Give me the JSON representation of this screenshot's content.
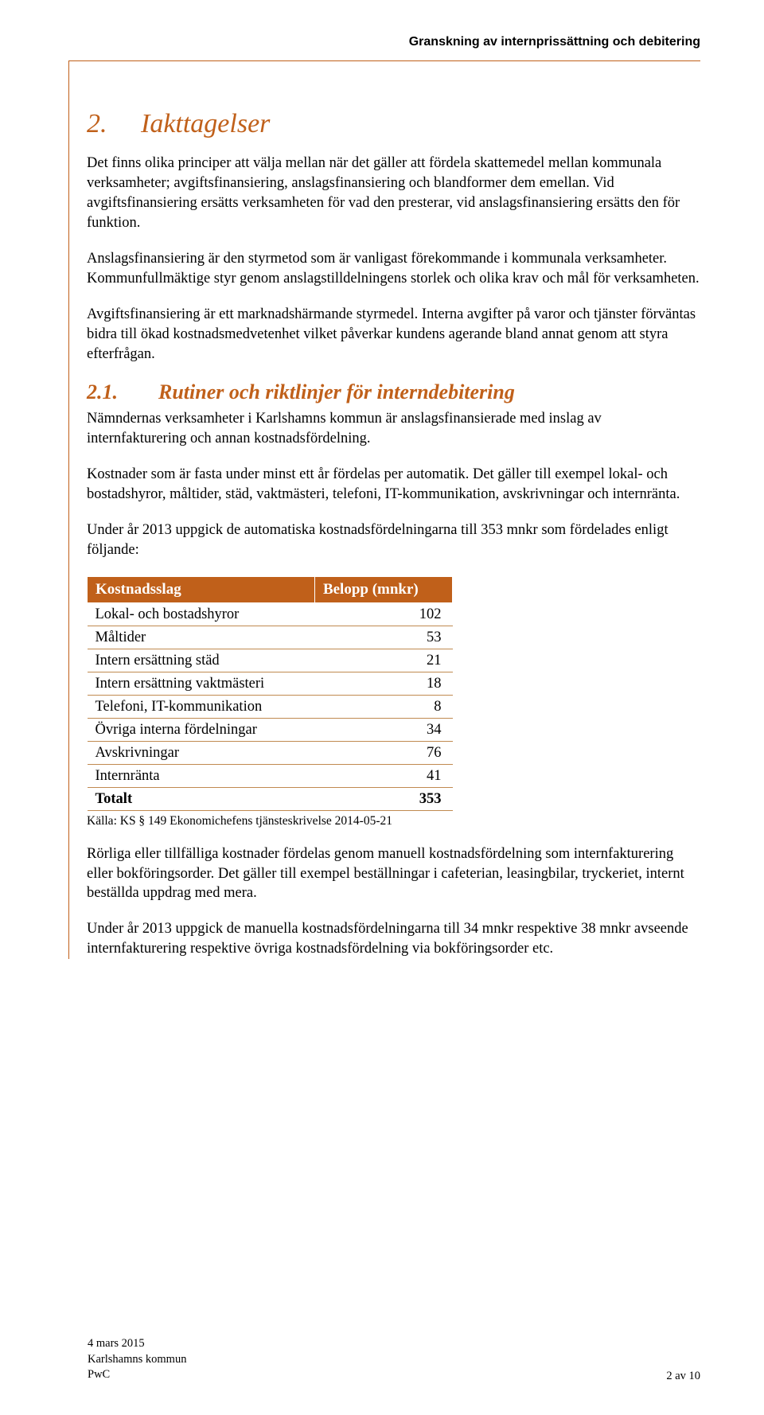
{
  "running_head": "Granskning av internprissättning och debitering",
  "section": {
    "number": "2.",
    "title": "Iakttagelser"
  },
  "paragraphs": {
    "p1": "Det finns olika principer att välja mellan när det gäller att fördela skattemedel mellan kommunala verksamheter; avgiftsfinansiering, anslagsfinansiering och blandformer dem emellan. Vid avgiftsfinansiering ersätts verksamheten för vad den presterar, vid anslagsfinansiering ersätts den för funktion.",
    "p2": "Anslagsfinansiering är den styrmetod som är vanligast förekommande i kommunala verksamheter. Kommunfullmäktige styr genom anslagstilldelningens storlek och olika krav och mål för verksamheten.",
    "p3": "Avgiftsfinansiering är ett marknadshärmande styrmedel. Interna avgifter på varor och tjänster förväntas bidra till ökad kostnadsmedvetenhet vilket påverkar kundens agerande bland annat genom att styra efterfrågan."
  },
  "subsection": {
    "number": "2.1.",
    "title": "Rutiner och riktlinjer för interndebitering"
  },
  "sub_paragraphs": {
    "sp1": "Nämndernas verksamheter i Karlshamns kommun är anslagsfinansierade med inslag av internfakturering och annan kostnadsfördelning.",
    "sp2": "Kostnader som är fasta under minst ett år fördelas per automatik. Det gäller till exempel lokal- och bostadshyror, måltider, städ, vaktmästeri, telefoni, IT-kommunikation, avskrivningar och internränta.",
    "sp3": "Under år 2013 uppgick de automatiska kostnadsfördelningarna till 353 mnkr som fördelades enligt följande:"
  },
  "table": {
    "header_col1": "Kostnadsslag",
    "header_col2": "Belopp (mnkr)",
    "rows": [
      {
        "label": "Lokal- och bostadshyror",
        "value": "102"
      },
      {
        "label": "Måltider",
        "value": "53"
      },
      {
        "label": "Intern ersättning städ",
        "value": "21"
      },
      {
        "label": "Intern ersättning vaktmästeri",
        "value": "18"
      },
      {
        "label": "Telefoni, IT-kommunikation",
        "value": "8"
      },
      {
        "label": "Övriga interna fördelningar",
        "value": "34"
      },
      {
        "label": "Avskrivningar",
        "value": "76"
      },
      {
        "label": "Internränta",
        "value": "41"
      }
    ],
    "total_label": "Totalt",
    "total_value": "353",
    "source": "Källa: KS § 149 Ekonomichefens tjänsteskrivelse 2014-05-21"
  },
  "after_table": {
    "ap1": "Rörliga eller tillfälliga kostnader fördelas genom manuell kostnadsfördelning som internfakturering eller bokföringsorder. Det gäller till exempel beställningar i cafeterian, leasingbilar, tryckeriet, internt beställda uppdrag med mera.",
    "ap2": "Under år 2013 uppgick de manuella kostnadsfördelningarna till 34 mnkr respektive 38 mnkr avseende internfakturering respektive övriga kostnadsfördelning via bokföringsorder etc."
  },
  "footer": {
    "line1": "4 mars 2015",
    "line2": "Karlshamns kommun",
    "line3": "PwC",
    "page": "2 av 10"
  },
  "colors": {
    "accent": "#c0601a",
    "rule": "#c0601a",
    "table_header_bg": "#c0601a",
    "table_header_fg": "#ffffff",
    "table_row_border": "#c08a50",
    "text": "#000000",
    "background": "#ffffff"
  }
}
